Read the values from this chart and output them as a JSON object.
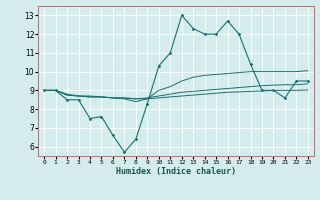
{
  "xlabel": "Humidex (Indice chaleur)",
  "bg_color": "#d4ecec",
  "grid_color": "#b8d8d8",
  "line_color": "#1a7070",
  "xlim": [
    -0.5,
    23.5
  ],
  "ylim": [
    5.5,
    13.5
  ],
  "xticks": [
    0,
    1,
    2,
    3,
    4,
    5,
    6,
    7,
    8,
    9,
    10,
    11,
    12,
    13,
    14,
    15,
    16,
    17,
    18,
    19,
    20,
    21,
    22,
    23
  ],
  "yticks": [
    6,
    7,
    8,
    9,
    10,
    11,
    12,
    13
  ],
  "series": [
    [
      9.0,
      9.0,
      8.5,
      8.5,
      7.5,
      7.6,
      6.6,
      5.7,
      6.4,
      8.3,
      10.3,
      11.0,
      13.0,
      12.3,
      12.0,
      12.0,
      12.7,
      12.0,
      10.4,
      9.0,
      9.0,
      8.6,
      9.5,
      9.5
    ],
    [
      9.0,
      9.0,
      8.8,
      8.7,
      8.7,
      8.65,
      8.6,
      8.55,
      8.4,
      8.55,
      9.0,
      9.2,
      9.5,
      9.7,
      9.8,
      9.85,
      9.9,
      9.95,
      10.0,
      10.0,
      10.0,
      10.0,
      10.0,
      10.05
    ],
    [
      9.0,
      9.0,
      8.75,
      8.7,
      8.65,
      8.65,
      8.6,
      8.58,
      8.55,
      8.6,
      8.7,
      8.8,
      8.9,
      8.95,
      9.0,
      9.05,
      9.1,
      9.15,
      9.2,
      9.25,
      9.28,
      9.3,
      9.3,
      9.35
    ],
    [
      9.0,
      9.0,
      8.75,
      8.7,
      8.65,
      8.65,
      8.6,
      8.6,
      8.55,
      8.55,
      8.6,
      8.65,
      8.7,
      8.75,
      8.8,
      8.85,
      8.9,
      8.92,
      8.95,
      8.97,
      9.0,
      9.0,
      9.0,
      9.02
    ]
  ]
}
